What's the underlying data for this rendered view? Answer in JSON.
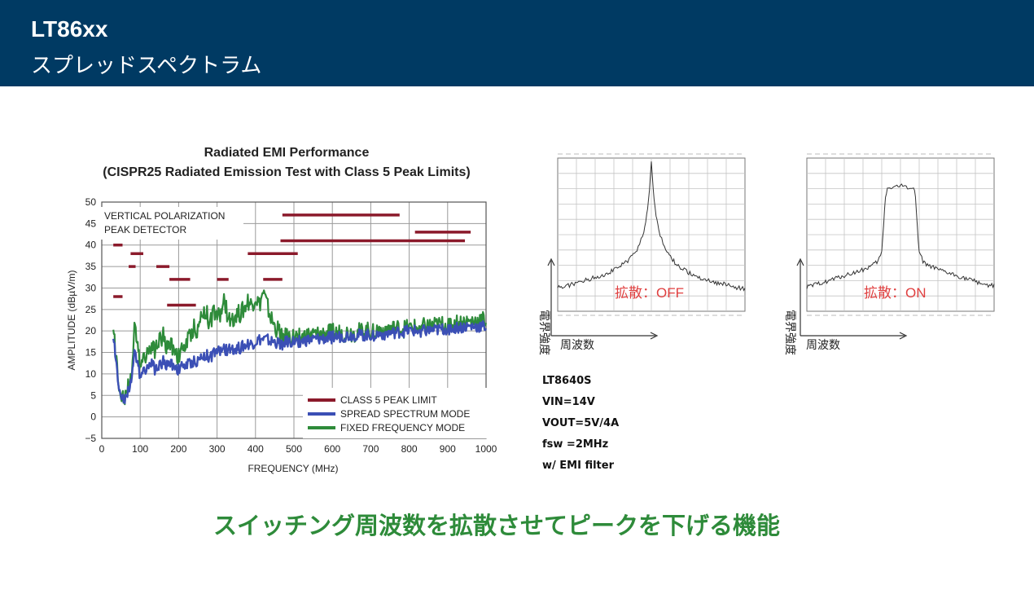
{
  "header": {
    "title": "LT86xx",
    "subtitle": "スプレッドスペクトラム"
  },
  "specs": [
    "LT8640S",
    "VIN=14V",
    "VOUT=5V/4A",
    "fsw =2MHz",
    "w/ EMI filter"
  ],
  "tagline": "スイッチング周波数を拡散させてピークを下げる機能",
  "colors": {
    "limit": "#8b1a2b",
    "spread": "#3b4fb5",
    "fixed": "#2e8b3a",
    "header_bg": "#003a63"
  },
  "chart_data": [
    {
      "type": "line",
      "title": "Radiated EMI Performance",
      "subtitle": "(CISPR25 Radiated Emission Test with Class 5 Peak Limits)",
      "xlabel": "FREQUENCY (MHz)",
      "ylabel": "AMPLITUDE (dBµV/m)",
      "xlim": [
        0,
        1000
      ],
      "ylim": [
        -5,
        50
      ],
      "xticks": [
        0,
        100,
        200,
        300,
        400,
        500,
        600,
        700,
        800,
        900,
        1000
      ],
      "yticks": [
        -5,
        0,
        5,
        10,
        15,
        20,
        25,
        30,
        35,
        40,
        45,
        50
      ],
      "grid": true,
      "legend_position": "bottom-right",
      "annotation": [
        "VERTICAL POLARIZATION",
        "PEAK DETECTOR"
      ],
      "series": [
        {
          "name": "CLASS 5 PEAK LIMIT",
          "segments": [
            [
              30,
              54,
              28
            ],
            [
              30,
              54,
              40
            ],
            [
              70,
              88,
              35
            ],
            [
              75,
              108,
              38
            ],
            [
              142,
              176,
              35
            ],
            [
              176,
              230,
              32
            ],
            [
              170,
              245,
              26
            ],
            [
              300,
              330,
              32
            ],
            [
              380,
              510,
              38
            ],
            [
              420,
              470,
              32
            ],
            [
              470,
              775,
              47
            ],
            [
              465,
              945,
              41
            ],
            [
              815,
              960,
              43
            ]
          ]
        },
        {
          "name": "SPREAD SPECTRUM MODE",
          "x": [
            30,
            35,
            40,
            45,
            50,
            55,
            60,
            65,
            70,
            75,
            80,
            85,
            90,
            95,
            100,
            110,
            120,
            130,
            140,
            150,
            160,
            170,
            180,
            190,
            200,
            210,
            220,
            230,
            240,
            250,
            260,
            270,
            280,
            290,
            300,
            310,
            320,
            330,
            340,
            350,
            360,
            370,
            380,
            390,
            400,
            410,
            420,
            430,
            440,
            450,
            460,
            470,
            480,
            500,
            550,
            600,
            650,
            700,
            750,
            800,
            850,
            900,
            950,
            1000
          ],
          "y": [
            18,
            15,
            10,
            7.5,
            5.5,
            4.5,
            4.5,
            5,
            6,
            8,
            12,
            15,
            13,
            11,
            10,
            11,
            12,
            12,
            11,
            12,
            13,
            12,
            12.5,
            12,
            11,
            12,
            12,
            12.5,
            13,
            13,
            14,
            14.5,
            14,
            14.5,
            15,
            15.5,
            15.5,
            15.5,
            16,
            16,
            16,
            16.5,
            17,
            17,
            17.5,
            18,
            18,
            18,
            17.5,
            17.5,
            17,
            17,
            17.5,
            17.5,
            18,
            18.5,
            19,
            19,
            19.5,
            20,
            20,
            20.5,
            21,
            21
          ]
        },
        {
          "name": "FIXED FREQUENCY MODE",
          "x": [
            30,
            35,
            40,
            45,
            50,
            55,
            60,
            65,
            70,
            75,
            80,
            85,
            90,
            95,
            100,
            110,
            120,
            130,
            140,
            150,
            160,
            170,
            180,
            190,
            200,
            210,
            220,
            230,
            240,
            250,
            260,
            270,
            280,
            290,
            300,
            310,
            320,
            330,
            340,
            350,
            360,
            370,
            380,
            390,
            400,
            410,
            420,
            430,
            440,
            450,
            460,
            470,
            480,
            500,
            550,
            600,
            650,
            700,
            750,
            800,
            850,
            900,
            950,
            1000
          ],
          "y": [
            20,
            16,
            11,
            8,
            5.5,
            5,
            5,
            6,
            7,
            9,
            14,
            21,
            18,
            14,
            13,
            14,
            16,
            15,
            16,
            18,
            19,
            16,
            17,
            16,
            14,
            16,
            17,
            19,
            21,
            20,
            24,
            25,
            22,
            24,
            23,
            24,
            27,
            22,
            23,
            24,
            24,
            25,
            27,
            26,
            28,
            26,
            29,
            26,
            23,
            21,
            20,
            19,
            18.5,
            18.5,
            19,
            19.5,
            19.5,
            20,
            20.5,
            20.5,
            21,
            21.5,
            22,
            22.5
          ]
        }
      ]
    },
    {
      "type": "line",
      "annotation": "拡散：OFF",
      "xlabel": "周波数",
      "ylabel": "電界強度",
      "x": [
        0,
        5,
        10,
        15,
        20,
        25,
        30,
        35,
        38,
        41,
        43,
        44.5,
        46,
        47,
        48,
        49,
        50,
        51,
        52,
        53,
        54,
        55.5,
        57,
        59,
        62,
        65,
        70,
        75,
        80,
        85,
        90,
        95,
        100
      ],
      "y": [
        12,
        13,
        15,
        17,
        19,
        21,
        24,
        28,
        31,
        35,
        40,
        45,
        50,
        58,
        66,
        80,
        98,
        80,
        66,
        58,
        50,
        45,
        40,
        35,
        30,
        26,
        22,
        19,
        17,
        15,
        14,
        12,
        11
      ]
    },
    {
      "type": "line",
      "annotation": "拡散：ON",
      "xlabel": "周波数",
      "ylabel": "電界強度",
      "x": [
        0,
        5,
        10,
        15,
        20,
        25,
        30,
        35,
        38,
        40,
        41,
        42,
        43,
        45,
        50,
        55,
        57,
        58,
        59,
        60,
        62,
        65,
        70,
        75,
        80,
        85,
        90,
        95,
        100
      ],
      "y": [
        12,
        14,
        16,
        18,
        20,
        22,
        24,
        27,
        30,
        36,
        55,
        75,
        80,
        81,
        82,
        81,
        80,
        75,
        55,
        36,
        30,
        27,
        24,
        22,
        20,
        18,
        16,
        14,
        13
      ]
    }
  ]
}
